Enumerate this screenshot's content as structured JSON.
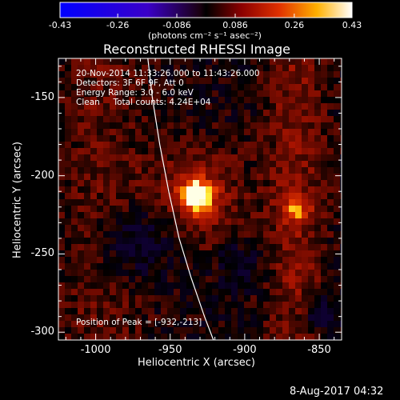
{
  "chart_data": {
    "type": "heatmap",
    "title": "Reconstructed RHESSI Image",
    "xlabel": "Heliocentric X (arcsec)",
    "ylabel": "Heliocentric Y (arcsec)",
    "xlim": [
      -1025,
      -835
    ],
    "ylim": [
      -305,
      -125
    ],
    "xticks": [
      -1000,
      -950,
      -900,
      -850
    ],
    "yticks": [
      -300,
      -250,
      -200,
      -150
    ],
    "colorbar": {
      "range": [
        -0.43,
        0.43
      ],
      "ticks": [
        "-0.43",
        "-0.26",
        "-0.086",
        "0.086",
        "0.26",
        "0.43"
      ],
      "units": "(photons cm⁻² s⁻¹ asec⁻²)",
      "colormap": "blue-black-red-yellow-white"
    },
    "annotations": [
      "20-Nov-2014 11:33:26.000 to 11:43:26.000",
      "Detectors: 3F 6F 9F, Att 0",
      "Energy Range: 3.0 - 6.0 keV",
      "Clean     Total counts: 4.24E+04"
    ],
    "peak_label": "Position of Peak = [-932,-213]",
    "peak": {
      "x": -932,
      "y": -213,
      "value": 0.43
    },
    "secondary_source": {
      "x": -866,
      "y": -221,
      "value": 0.22
    },
    "limb_curve": [
      [
        -965,
        -125
      ],
      [
        -962,
        -150
      ],
      [
        -957,
        -180
      ],
      [
        -951,
        -210
      ],
      [
        -944,
        -240
      ],
      [
        -936,
        -265
      ],
      [
        -927,
        -290
      ],
      [
        -921,
        -305
      ]
    ]
  },
  "footer": {
    "date": "8-Aug-2017 04:32"
  }
}
